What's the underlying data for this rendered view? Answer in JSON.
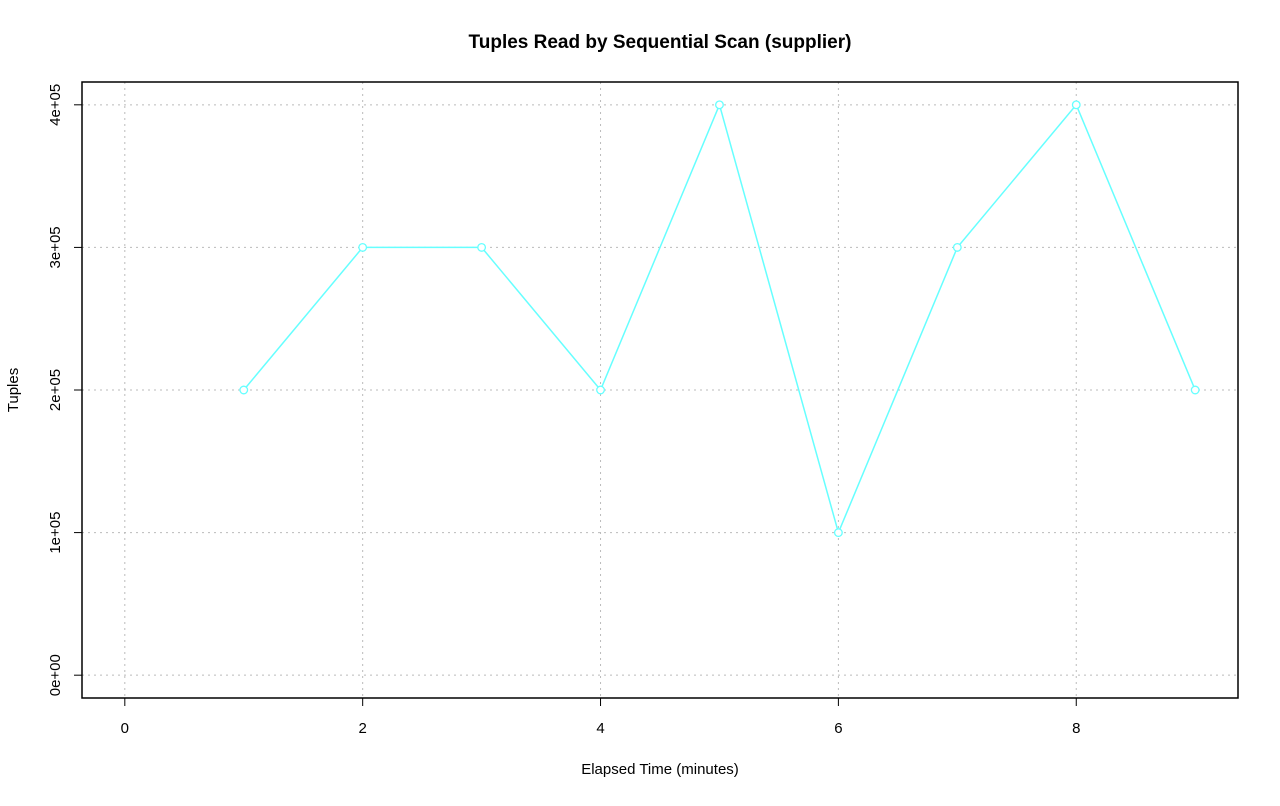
{
  "chart_data": {
    "type": "line",
    "title": "Tuples Read by Sequential Scan (supplier)",
    "x_label": "Elapsed Time (minutes)",
    "y_label": "Tuples",
    "x": [
      1,
      2,
      3,
      4,
      5,
      6,
      7,
      8,
      9
    ],
    "series": [
      {
        "color": "#66ffff",
        "values": [
          200000,
          300000,
          300000,
          200000,
          400000,
          100000,
          300000,
          400000,
          200000
        ]
      }
    ],
    "xlim": [
      -0.36,
      9.36
    ],
    "ylim": [
      -16000,
      416000
    ],
    "xticks": [
      0,
      2,
      4,
      6,
      8
    ],
    "yticks": [
      {
        "value": 0,
        "label": "0e+00"
      },
      {
        "value": 100000,
        "label": "1e+05"
      },
      {
        "value": 200000,
        "label": "2e+05"
      },
      {
        "value": 300000,
        "label": "3e+05"
      },
      {
        "value": 400000,
        "label": "4e+05"
      }
    ],
    "grid": true
  }
}
